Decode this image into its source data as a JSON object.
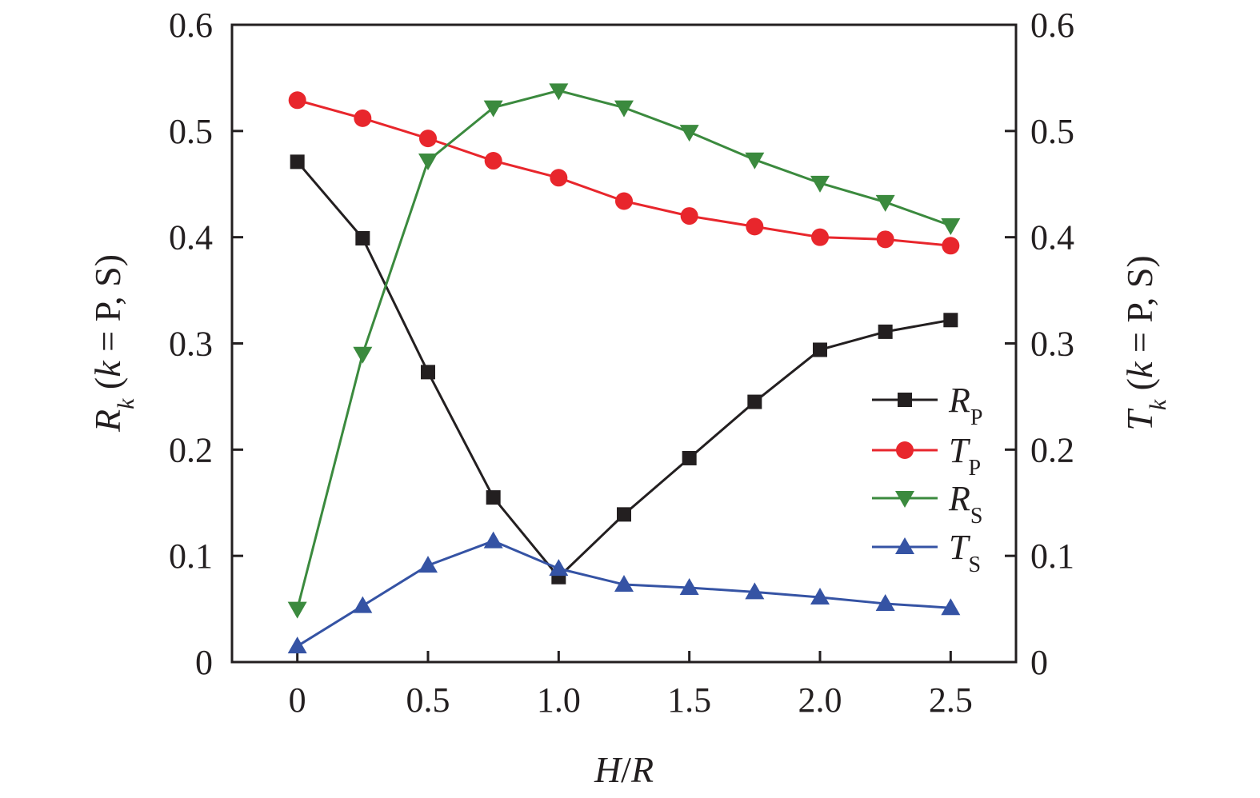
{
  "chart_data": {
    "type": "line",
    "title": "",
    "x": [
      0,
      0.25,
      0.5,
      0.75,
      1.0,
      1.25,
      1.5,
      1.75,
      2.0,
      2.25,
      2.5
    ],
    "xlim": [
      -0.25,
      2.75
    ],
    "ylim": [
      0,
      0.6
    ],
    "y2lim": [
      0,
      0.6
    ],
    "grid": false,
    "legend_position": "right-middle",
    "x_ticks": [
      {
        "value": 0,
        "label": "0"
      },
      {
        "value": 0.5,
        "label": "0.5"
      },
      {
        "value": 1.0,
        "label": "1.0"
      },
      {
        "value": 1.5,
        "label": "1.5"
      },
      {
        "value": 2.0,
        "label": "2.0"
      },
      {
        "value": 2.5,
        "label": "2.5"
      }
    ],
    "y_ticks": [
      {
        "value": 0,
        "label": "0"
      },
      {
        "value": 0.1,
        "label": "0.1"
      },
      {
        "value": 0.2,
        "label": "0.2"
      },
      {
        "value": 0.3,
        "label": "0.3"
      },
      {
        "value": 0.4,
        "label": "0.4"
      },
      {
        "value": 0.5,
        "label": "0.5"
      },
      {
        "value": 0.6,
        "label": "0.6"
      }
    ],
    "xlabel": {
      "main": "H",
      "sep": "/",
      "main2": "R"
    },
    "ylabel": {
      "main": "R",
      "sub": "k",
      "rest": " (",
      "var": "k",
      "tail": " = P, S)"
    },
    "y2label": {
      "main": "T",
      "sub": "k",
      "rest": " (",
      "var": "k",
      "tail": " = P, S)"
    },
    "series": [
      {
        "id": "rp",
        "name_main": "R",
        "name_sub": "P",
        "color": "#231f20",
        "marker": "square",
        "values": [
          0.471,
          0.399,
          0.273,
          0.155,
          0.08,
          0.139,
          0.192,
          0.245,
          0.294,
          0.311,
          0.322
        ]
      },
      {
        "id": "tp",
        "name_main": "T",
        "name_sub": "P",
        "color": "#e8262c",
        "marker": "circle",
        "values": [
          0.529,
          0.512,
          0.493,
          0.472,
          0.456,
          0.434,
          0.42,
          0.41,
          0.4,
          0.398,
          0.392
        ]
      },
      {
        "id": "rs",
        "name_main": "R",
        "name_sub": "S",
        "color": "#3b8a3e",
        "marker": "triangle-down",
        "values": [
          0.05,
          0.29,
          0.472,
          0.522,
          0.538,
          0.522,
          0.499,
          0.473,
          0.451,
          0.433,
          0.411
        ]
      },
      {
        "id": "ts",
        "name_main": "T",
        "name_sub": "S",
        "color": "#3553a4",
        "marker": "triangle-up",
        "values": [
          0.015,
          0.053,
          0.091,
          0.114,
          0.088,
          0.073,
          0.07,
          0.066,
          0.061,
          0.055,
          0.051
        ]
      }
    ]
  }
}
